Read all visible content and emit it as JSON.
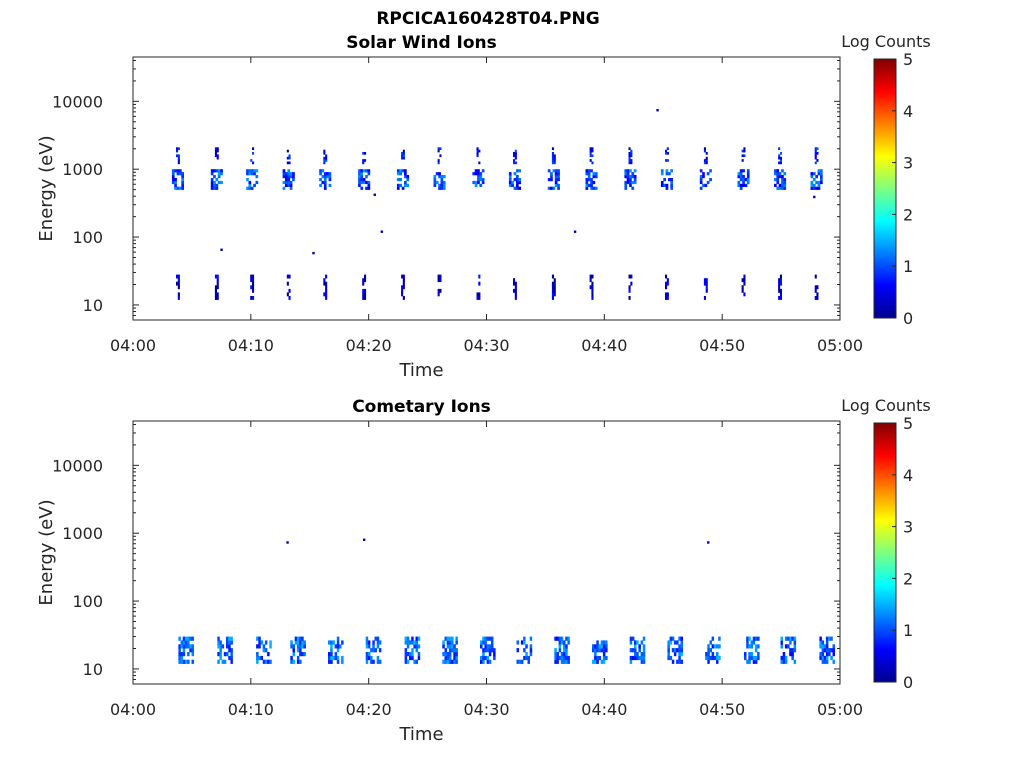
{
  "figure": {
    "title": "RPCICA160428T04.PNG"
  },
  "chart_data": [
    {
      "type": "heatmap",
      "title": "Solar Wind Ions",
      "xlabel": "Time",
      "ylabel": "Energy (eV)",
      "x_tick_labels": [
        "04:00",
        "04:10",
        "04:20",
        "04:30",
        "04:40",
        "04:50",
        "05:00"
      ],
      "x_range_minutes": [
        0,
        60
      ],
      "y_scale": "log",
      "y_tick_labels": [
        "10",
        "100",
        "1000",
        "10000"
      ],
      "y_range": [
        6,
        45000
      ],
      "colorbar": {
        "label": "Log Counts",
        "ticks": [
          "0",
          "1",
          "2",
          "3",
          "4",
          "5"
        ],
        "range": [
          0,
          5
        ],
        "colormap": "jet"
      },
      "grid": false,
      "burst_minutes": [
        3.8,
        7.1,
        10.1,
        13.2,
        16.3,
        19.6,
        22.9,
        26.0,
        29.3,
        32.4,
        35.7,
        38.9,
        42.2,
        45.3,
        48.6,
        51.8,
        54.9,
        58.0
      ],
      "bands": [
        {
          "energy_ev": [
            1200,
            2100
          ],
          "level": 0.6,
          "width_min": 0.3
        },
        {
          "energy_ev": [
            500,
            1000
          ],
          "level": 0.95,
          "width_min": 1.0
        },
        {
          "energy_ev": [
            12,
            28
          ],
          "level": 0.3,
          "width_min": 0.3
        }
      ],
      "isolated_points": [
        {
          "minute": 44.5,
          "energy_ev": 7400
        },
        {
          "minute": 7.5,
          "energy_ev": 65
        },
        {
          "minute": 15.3,
          "energy_ev": 58
        },
        {
          "minute": 20.5,
          "energy_ev": 420
        },
        {
          "minute": 21.1,
          "energy_ev": 120
        },
        {
          "minute": 37.5,
          "energy_ev": 120
        },
        {
          "minute": 57.8,
          "energy_ev": 390
        }
      ]
    },
    {
      "type": "heatmap",
      "title": "Cometary Ions",
      "xlabel": "Time",
      "ylabel": "Energy (eV)",
      "x_tick_labels": [
        "04:00",
        "04:10",
        "04:20",
        "04:30",
        "04:40",
        "04:50",
        "05:00"
      ],
      "x_range_minutes": [
        0,
        60
      ],
      "y_scale": "log",
      "y_tick_labels": [
        "10",
        "100",
        "1000",
        "10000"
      ],
      "y_range": [
        6,
        45000
      ],
      "colorbar": {
        "label": "Log Counts",
        "ticks": [
          "0",
          "1",
          "2",
          "3",
          "4",
          "5"
        ],
        "range": [
          0,
          5
        ],
        "colormap": "jet"
      },
      "grid": false,
      "burst_minutes": [
        4.5,
        7.8,
        11.1,
        14.0,
        17.2,
        20.4,
        23.7,
        26.9,
        30.1,
        33.2,
        36.4,
        39.6,
        42.8,
        46.0,
        49.2,
        52.5,
        55.6,
        58.9
      ],
      "bands": [
        {
          "energy_ev": [
            12,
            30
          ],
          "level": 1.1,
          "width_min": 1.3
        }
      ],
      "isolated_points": [
        {
          "minute": 13.1,
          "energy_ev": 730
        },
        {
          "minute": 19.6,
          "energy_ev": 800
        },
        {
          "minute": 48.8,
          "energy_ev": 730
        }
      ]
    }
  ]
}
